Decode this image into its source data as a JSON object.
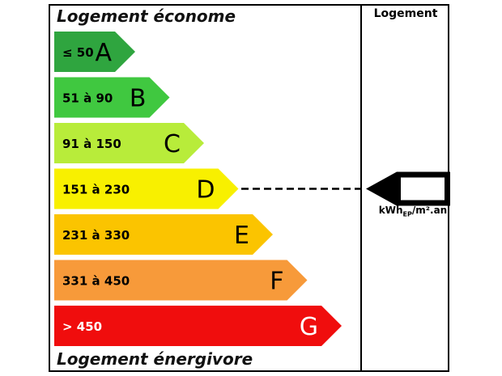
{
  "header": {
    "top_label": "Logement économe",
    "bottom_label": "Logement énergivore",
    "column_label": "Logement"
  },
  "classes": [
    {
      "range": "≤ 50",
      "letter": "A",
      "color": "#2fa53f",
      "text_color": "#000000"
    },
    {
      "range": "51 à 90",
      "letter": "B",
      "color": "#40c840",
      "text_color": "#000000"
    },
    {
      "range": "91 à 150",
      "letter": "C",
      "color": "#b8ec3a",
      "text_color": "#000000"
    },
    {
      "range": "151 à 230",
      "letter": "D",
      "color": "#f8f000",
      "text_color": "#000000"
    },
    {
      "range": "231 à 330",
      "letter": "E",
      "color": "#fbc400",
      "text_color": "#000000"
    },
    {
      "range": "331 à 450",
      "letter": "F",
      "color": "#f79a3a",
      "text_color": "#000000"
    },
    {
      "range": "> 450",
      "letter": "G",
      "color": "#f00d0d",
      "text_color": "#ffffff"
    }
  ],
  "indicator": {
    "value": "",
    "unit_main": "kWh",
    "unit_sub": "EP",
    "unit_tail": "/m².an",
    "points_to_class": "D"
  }
}
